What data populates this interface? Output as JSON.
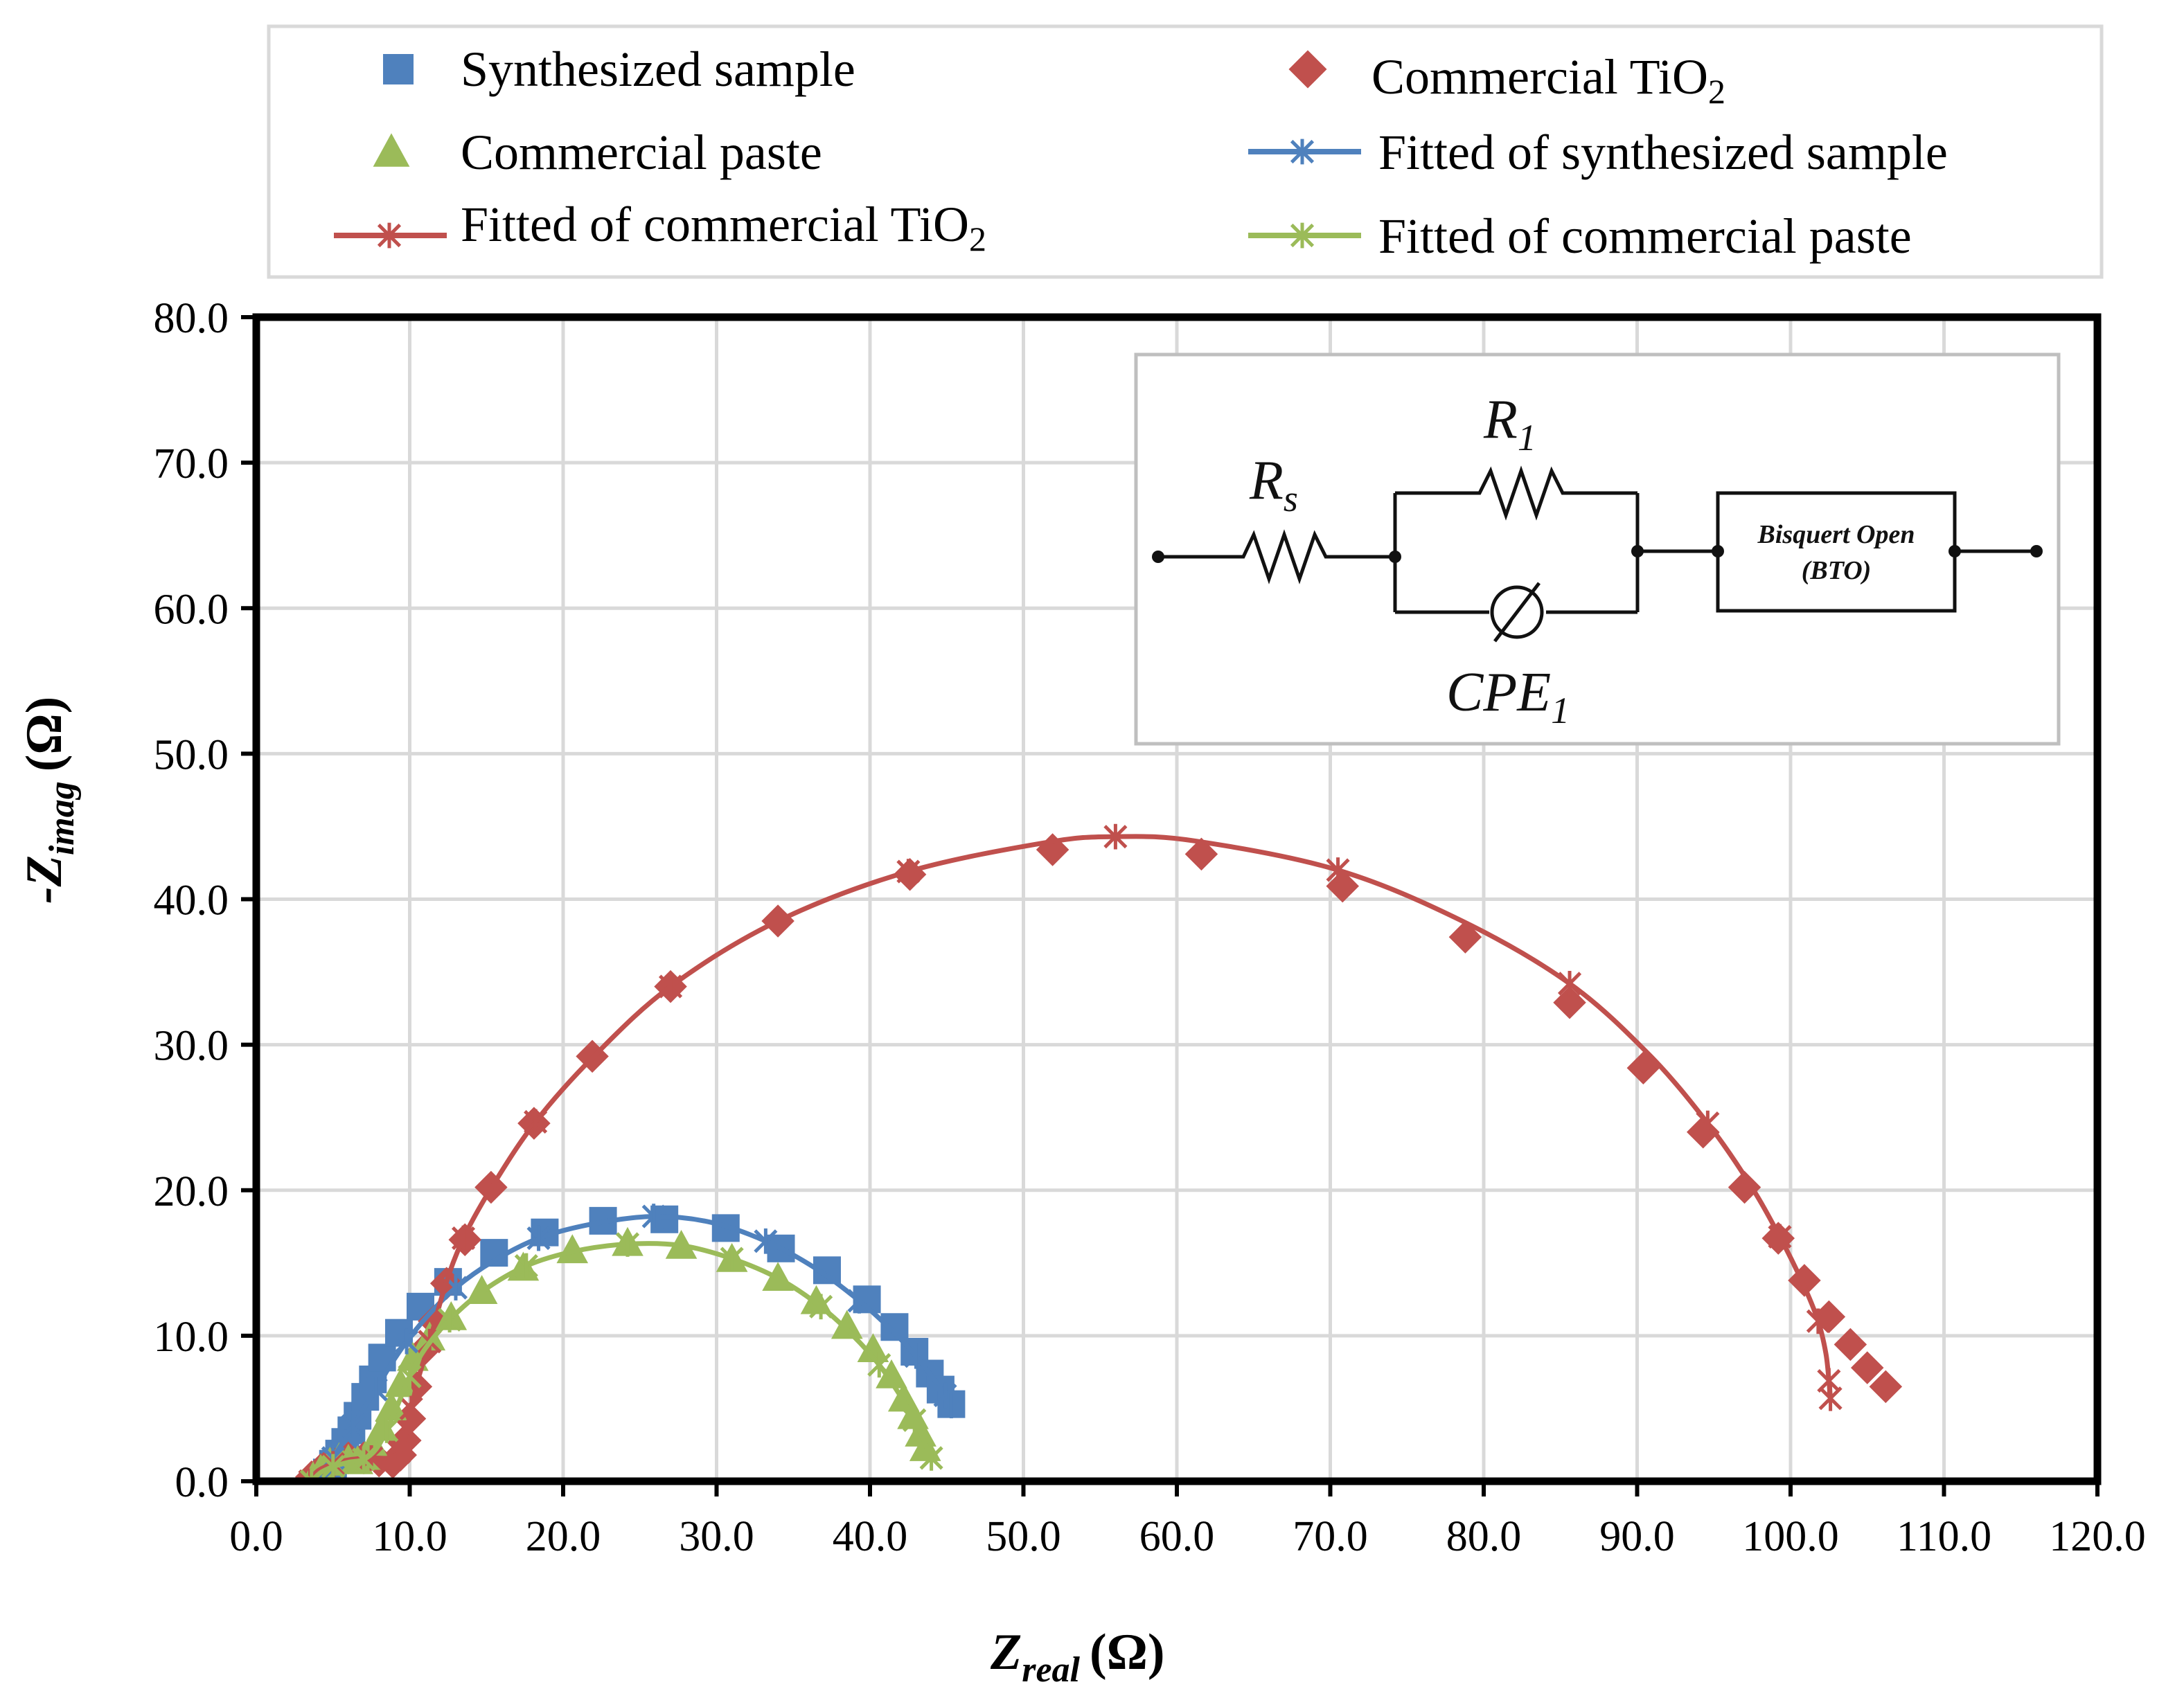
{
  "chart_data": {
    "type": "scatter",
    "title": "",
    "xlabel": "Z",
    "xlabel_sub": "real",
    "xlabel_unit": "(Ω)",
    "ylabel": "-Z",
    "ylabel_sub": "imag",
    "ylabel_unit": "(Ω)",
    "xlim": [
      0,
      120
    ],
    "ylim": [
      0,
      80
    ],
    "xticks": [
      "0.0",
      "10.0",
      "20.0",
      "30.0",
      "40.0",
      "50.0",
      "60.0",
      "70.0",
      "80.0",
      "90.0",
      "100.0",
      "110.0",
      "120.0"
    ],
    "yticks": [
      "0.0",
      "10.0",
      "20.0",
      "30.0",
      "40.0",
      "50.0",
      "60.0",
      "70.0",
      "80.0"
    ],
    "grid": true,
    "legend_position": "top",
    "series": [
      {
        "name": "Synthesized sample",
        "kind": "markers",
        "marker": "square",
        "color": "#4f81bd",
        "points": [
          [
            4.3,
            0.2
          ],
          [
            4.6,
            0.6
          ],
          [
            5.0,
            1.2
          ],
          [
            5.4,
            1.9
          ],
          [
            5.8,
            2.7
          ],
          [
            6.2,
            3.5
          ],
          [
            6.6,
            4.5
          ],
          [
            7.1,
            5.8
          ],
          [
            7.6,
            7.0
          ],
          [
            8.2,
            8.5
          ],
          [
            9.3,
            10.2
          ],
          [
            10.7,
            12.0
          ],
          [
            12.5,
            13.7
          ],
          [
            15.5,
            15.7
          ],
          [
            18.8,
            17.1
          ],
          [
            22.6,
            17.9
          ],
          [
            26.6,
            18.0
          ],
          [
            30.6,
            17.4
          ],
          [
            34.2,
            16.0
          ],
          [
            37.2,
            14.5
          ],
          [
            39.8,
            12.5
          ],
          [
            41.6,
            10.6
          ],
          [
            42.9,
            8.9
          ],
          [
            43.9,
            7.4
          ],
          [
            44.6,
            6.3
          ],
          [
            45.3,
            5.3
          ]
        ]
      },
      {
        "name": "Commercial TiO2",
        "label_main": "Commercial TiO",
        "label_sub": "2",
        "kind": "markers",
        "marker": "diamond",
        "color": "#c0504d",
        "points": [
          [
            3.6,
            0.3
          ],
          [
            4.2,
            0.8
          ],
          [
            5.0,
            1.3
          ],
          [
            6.0,
            1.6
          ],
          [
            7.0,
            1.6
          ],
          [
            8.0,
            1.4
          ],
          [
            8.9,
            1.3
          ],
          [
            9.4,
            1.8
          ],
          [
            9.7,
            2.8
          ],
          [
            10.0,
            4.3
          ],
          [
            10.4,
            6.5
          ],
          [
            10.9,
            9.0
          ],
          [
            11.6,
            11.0
          ],
          [
            12.4,
            13.6
          ],
          [
            13.6,
            16.6
          ],
          [
            15.3,
            20.2
          ],
          [
            18.1,
            24.6
          ],
          [
            21.9,
            29.2
          ],
          [
            27.0,
            34.0
          ],
          [
            34.0,
            38.5
          ],
          [
            42.6,
            41.7
          ],
          [
            51.9,
            43.4
          ],
          [
            61.6,
            43.1
          ],
          [
            70.8,
            40.9
          ],
          [
            78.8,
            37.4
          ],
          [
            85.6,
            32.9
          ],
          [
            90.4,
            28.4
          ],
          [
            94.3,
            24.0
          ],
          [
            97.0,
            20.2
          ],
          [
            99.2,
            16.7
          ],
          [
            100.9,
            13.8
          ],
          [
            102.5,
            11.3
          ],
          [
            103.9,
            9.4
          ],
          [
            105.0,
            7.8
          ],
          [
            106.2,
            6.5
          ]
        ]
      },
      {
        "name": "Commercial paste",
        "kind": "markers",
        "marker": "triangle",
        "color": "#9bbb59",
        "points": [
          [
            3.7,
            0.2
          ],
          [
            4.2,
            0.7
          ],
          [
            4.8,
            1.2
          ],
          [
            5.4,
            1.5
          ],
          [
            6.0,
            1.4
          ],
          [
            6.6,
            1.3
          ],
          [
            7.1,
            1.6
          ],
          [
            7.6,
            2.4
          ],
          [
            8.2,
            3.6
          ],
          [
            8.8,
            5.0
          ],
          [
            9.4,
            6.6
          ],
          [
            10.2,
            8.4
          ],
          [
            11.3,
            9.8
          ],
          [
            12.7,
            11.2
          ],
          [
            14.7,
            13.0
          ],
          [
            17.4,
            14.6
          ],
          [
            20.6,
            15.8
          ],
          [
            24.2,
            16.3
          ],
          [
            27.7,
            16.1
          ],
          [
            31.0,
            15.2
          ],
          [
            34.0,
            13.9
          ],
          [
            36.5,
            12.3
          ],
          [
            38.5,
            10.6
          ],
          [
            40.2,
            9.0
          ],
          [
            41.4,
            7.2
          ],
          [
            42.2,
            5.6
          ],
          [
            42.8,
            4.4
          ],
          [
            43.3,
            3.2
          ],
          [
            43.6,
            2.2
          ]
        ]
      },
      {
        "name": "Fitted of synthesized sample",
        "kind": "line",
        "marker": "asterisk",
        "color": "#4f81bd",
        "points": [
          [
            4.2,
            0.0
          ],
          [
            4.5,
            0.8
          ],
          [
            5.0,
            1.6
          ],
          [
            5.6,
            2.6
          ],
          [
            6.3,
            3.8
          ],
          [
            7.0,
            5.0
          ],
          [
            7.8,
            6.3
          ],
          [
            8.7,
            7.9
          ],
          [
            9.8,
            9.6
          ],
          [
            11.2,
            11.4
          ],
          [
            13.0,
            13.3
          ],
          [
            15.4,
            15.1
          ],
          [
            18.4,
            16.7
          ],
          [
            22.0,
            17.7
          ],
          [
            25.9,
            18.2
          ],
          [
            29.6,
            17.8
          ],
          [
            33.2,
            16.5
          ],
          [
            36.5,
            14.6
          ],
          [
            39.3,
            12.4
          ],
          [
            41.4,
            10.4
          ],
          [
            43.0,
            8.6
          ],
          [
            44.1,
            7.1
          ],
          [
            44.9,
            5.9
          ],
          [
            45.3,
            5.2
          ]
        ]
      },
      {
        "name": "Fitted of commercial TiO2",
        "label_main": "Fitted of commercial TiO",
        "label_sub": "2",
        "kind": "line",
        "marker": "asterisk",
        "color": "#c0504d",
        "points": [
          [
            3.5,
            0.0
          ],
          [
            4.0,
            0.7
          ],
          [
            5.0,
            1.2
          ],
          [
            6.2,
            1.5
          ],
          [
            7.5,
            1.6
          ],
          [
            8.6,
            1.6
          ],
          [
            9.3,
            2.0
          ],
          [
            9.7,
            3.0
          ],
          [
            10.1,
            5.0
          ],
          [
            10.6,
            7.2
          ],
          [
            11.3,
            9.6
          ],
          [
            12.3,
            13.4
          ],
          [
            13.5,
            16.7
          ],
          [
            15.4,
            20.3
          ],
          [
            18.2,
            24.7
          ],
          [
            22.0,
            29.2
          ],
          [
            27.0,
            34.0
          ],
          [
            34.0,
            38.5
          ],
          [
            42.5,
            41.9
          ],
          [
            51.5,
            43.9
          ],
          [
            56.0,
            44.3
          ],
          [
            61.2,
            44.0
          ],
          [
            70.5,
            42.0
          ],
          [
            78.6,
            38.5
          ],
          [
            85.6,
            34.2
          ],
          [
            90.8,
            29.3
          ],
          [
            94.6,
            24.6
          ],
          [
            97.3,
            20.5
          ],
          [
            99.3,
            16.8
          ],
          [
            100.8,
            13.6
          ],
          [
            101.8,
            11.0
          ],
          [
            102.3,
            8.8
          ],
          [
            102.5,
            6.9
          ],
          [
            102.6,
            5.7
          ]
        ]
      },
      {
        "name": "Fitted of commercial paste",
        "kind": "line",
        "marker": "asterisk",
        "color": "#9bbb59",
        "points": [
          [
            3.6,
            0.0
          ],
          [
            4.2,
            0.6
          ],
          [
            5.0,
            1.0
          ],
          [
            6.0,
            1.3
          ],
          [
            7.0,
            1.5
          ],
          [
            7.8,
            2.2
          ],
          [
            8.5,
            3.5
          ],
          [
            9.2,
            5.2
          ],
          [
            10.0,
            7.2
          ],
          [
            11.0,
            9.1
          ],
          [
            12.6,
            11.1
          ],
          [
            14.8,
            13.1
          ],
          [
            17.6,
            14.8
          ],
          [
            20.7,
            15.8
          ],
          [
            24.2,
            16.3
          ],
          [
            27.7,
            16.2
          ],
          [
            31.0,
            15.3
          ],
          [
            34.1,
            13.9
          ],
          [
            36.8,
            12.0
          ],
          [
            38.9,
            10.0
          ],
          [
            40.6,
            8.0
          ],
          [
            41.9,
            6.0
          ],
          [
            42.9,
            4.2
          ],
          [
            43.6,
            2.6
          ],
          [
            44.0,
            1.6
          ]
        ]
      }
    ],
    "inset": {
      "rs_label": "R",
      "rs_sub": "s",
      "r1_label": "R",
      "r1_sub": "1",
      "cpe_label": "CPE",
      "cpe_sub": "1",
      "bto_line1": "Bisquert Open",
      "bto_line2": "(BTO)"
    }
  }
}
